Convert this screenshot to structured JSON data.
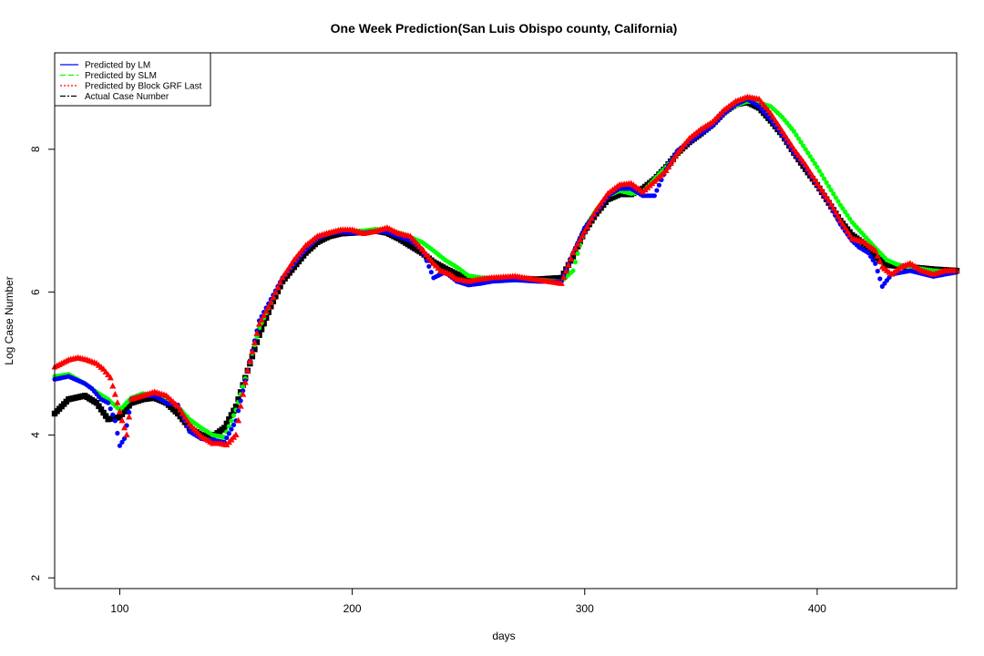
{
  "chart_data": {
    "type": "scatter",
    "title": "One Week Prediction(San Luis Obispo county, California)",
    "xlabel": "days",
    "ylabel": "Log Case Number",
    "xlim": [
      72,
      460
    ],
    "ylim": [
      1.85,
      9.35
    ],
    "xticks": [
      100,
      200,
      300,
      400
    ],
    "yticks": [
      2,
      4,
      6,
      8
    ],
    "legend_position": "top-left",
    "legend": [
      {
        "label": "Predicted by LM",
        "color": "#0000ff",
        "line": "solid"
      },
      {
        "label": "Predicted by SLM",
        "color": "#00ff00",
        "line": "dashed"
      },
      {
        "label": "Predicted by Block GRF Last",
        "color": "#ff0000",
        "line": "dotted"
      },
      {
        "label": "Actual Case Number",
        "color": "#000000",
        "line": "dashdot"
      }
    ],
    "series": [
      {
        "name": "Actual Case Number",
        "color": "#000000",
        "marker": "square",
        "points": [
          [
            72,
            4.3
          ],
          [
            78,
            4.5
          ],
          [
            85,
            4.55
          ],
          [
            90,
            4.45
          ],
          [
            95,
            4.22
          ],
          [
            100,
            4.25
          ],
          [
            105,
            4.45
          ],
          [
            110,
            4.5
          ],
          [
            115,
            4.52
          ],
          [
            120,
            4.45
          ],
          [
            125,
            4.3
          ],
          [
            130,
            4.1
          ],
          [
            135,
            4.0
          ],
          [
            140,
            3.98
          ],
          [
            145,
            4.1
          ],
          [
            150,
            4.4
          ],
          [
            155,
            4.9
          ],
          [
            160,
            5.4
          ],
          [
            165,
            5.8
          ],
          [
            170,
            6.15
          ],
          [
            175,
            6.35
          ],
          [
            180,
            6.55
          ],
          [
            185,
            6.7
          ],
          [
            190,
            6.78
          ],
          [
            195,
            6.82
          ],
          [
            200,
            6.83
          ],
          [
            205,
            6.84
          ],
          [
            210,
            6.86
          ],
          [
            215,
            6.83
          ],
          [
            220,
            6.75
          ],
          [
            225,
            6.65
          ],
          [
            230,
            6.55
          ],
          [
            235,
            6.42
          ],
          [
            240,
            6.33
          ],
          [
            245,
            6.25
          ],
          [
            250,
            6.2
          ],
          [
            260,
            6.18
          ],
          [
            270,
            6.18
          ],
          [
            280,
            6.18
          ],
          [
            290,
            6.2
          ],
          [
            295,
            6.5
          ],
          [
            300,
            6.85
          ],
          [
            305,
            7.1
          ],
          [
            310,
            7.3
          ],
          [
            315,
            7.37
          ],
          [
            320,
            7.37
          ],
          [
            325,
            7.45
          ],
          [
            330,
            7.58
          ],
          [
            335,
            7.75
          ],
          [
            340,
            7.95
          ],
          [
            345,
            8.1
          ],
          [
            350,
            8.22
          ],
          [
            355,
            8.35
          ],
          [
            360,
            8.52
          ],
          [
            365,
            8.63
          ],
          [
            370,
            8.66
          ],
          [
            375,
            8.58
          ],
          [
            380,
            8.4
          ],
          [
            385,
            8.2
          ],
          [
            390,
            7.95
          ],
          [
            395,
            7.72
          ],
          [
            400,
            7.5
          ],
          [
            405,
            7.25
          ],
          [
            410,
            7.0
          ],
          [
            415,
            6.8
          ],
          [
            420,
            6.68
          ],
          [
            425,
            6.5
          ],
          [
            430,
            6.38
          ],
          [
            440,
            6.35
          ],
          [
            450,
            6.32
          ],
          [
            460,
            6.3
          ]
        ]
      },
      {
        "name": "Predicted by SLM",
        "color": "#00ff00",
        "marker": "dot",
        "points": [
          [
            72,
            4.82
          ],
          [
            78,
            4.85
          ],
          [
            85,
            4.72
          ],
          [
            90,
            4.6
          ],
          [
            95,
            4.5
          ],
          [
            100,
            4.35
          ],
          [
            105,
            4.52
          ],
          [
            110,
            4.58
          ],
          [
            115,
            4.55
          ],
          [
            120,
            4.5
          ],
          [
            125,
            4.4
          ],
          [
            130,
            4.22
          ],
          [
            135,
            4.1
          ],
          [
            140,
            4.0
          ],
          [
            145,
            3.97
          ],
          [
            150,
            4.35
          ],
          [
            155,
            4.9
          ],
          [
            160,
            5.5
          ],
          [
            165,
            5.85
          ],
          [
            170,
            6.2
          ],
          [
            175,
            6.4
          ],
          [
            180,
            6.6
          ],
          [
            185,
            6.75
          ],
          [
            190,
            6.82
          ],
          [
            195,
            6.86
          ],
          [
            200,
            6.85
          ],
          [
            205,
            6.86
          ],
          [
            210,
            6.88
          ],
          [
            215,
            6.87
          ],
          [
            220,
            6.83
          ],
          [
            225,
            6.77
          ],
          [
            230,
            6.7
          ],
          [
            235,
            6.58
          ],
          [
            240,
            6.45
          ],
          [
            245,
            6.35
          ],
          [
            250,
            6.23
          ],
          [
            260,
            6.18
          ],
          [
            270,
            6.17
          ],
          [
            280,
            6.17
          ],
          [
            290,
            6.15
          ],
          [
            295,
            6.3
          ],
          [
            300,
            6.9
          ],
          [
            305,
            7.15
          ],
          [
            310,
            7.35
          ],
          [
            315,
            7.42
          ],
          [
            320,
            7.38
          ],
          [
            325,
            7.4
          ],
          [
            330,
            7.58
          ],
          [
            335,
            7.75
          ],
          [
            340,
            7.95
          ],
          [
            345,
            8.13
          ],
          [
            350,
            8.24
          ],
          [
            355,
            8.35
          ],
          [
            360,
            8.5
          ],
          [
            365,
            8.62
          ],
          [
            370,
            8.67
          ],
          [
            375,
            8.65
          ],
          [
            380,
            8.6
          ],
          [
            385,
            8.45
          ],
          [
            390,
            8.25
          ],
          [
            395,
            8.0
          ],
          [
            400,
            7.75
          ],
          [
            405,
            7.48
          ],
          [
            410,
            7.22
          ],
          [
            415,
            6.98
          ],
          [
            420,
            6.8
          ],
          [
            425,
            6.62
          ],
          [
            430,
            6.45
          ],
          [
            435,
            6.38
          ],
          [
            440,
            6.35
          ],
          [
            450,
            6.3
          ],
          [
            460,
            6.28
          ]
        ]
      },
      {
        "name": "Predicted by LM",
        "color": "#0000ff",
        "marker": "dot",
        "points": [
          [
            72,
            4.78
          ],
          [
            78,
            4.82
          ],
          [
            85,
            4.72
          ],
          [
            88,
            4.65
          ],
          [
            92,
            4.5
          ],
          [
            95,
            4.45
          ],
          [
            98,
            4.2
          ],
          [
            100,
            3.85
          ],
          [
            102,
            3.95
          ],
          [
            105,
            4.5
          ],
          [
            110,
            4.55
          ],
          [
            115,
            4.55
          ],
          [
            120,
            4.45
          ],
          [
            125,
            4.42
          ],
          [
            130,
            4.05
          ],
          [
            135,
            3.95
          ],
          [
            140,
            3.93
          ],
          [
            145,
            3.9
          ],
          [
            150,
            4.2
          ],
          [
            155,
            4.9
          ],
          [
            160,
            5.6
          ],
          [
            165,
            5.9
          ],
          [
            170,
            6.2
          ],
          [
            175,
            6.4
          ],
          [
            180,
            6.6
          ],
          [
            185,
            6.75
          ],
          [
            190,
            6.82
          ],
          [
            195,
            6.84
          ],
          [
            200,
            6.83
          ],
          [
            205,
            6.83
          ],
          [
            210,
            6.85
          ],
          [
            215,
            6.84
          ],
          [
            220,
            6.78
          ],
          [
            225,
            6.72
          ],
          [
            230,
            6.6
          ],
          [
            235,
            6.2
          ],
          [
            240,
            6.28
          ],
          [
            245,
            6.15
          ],
          [
            250,
            6.1
          ],
          [
            255,
            6.12
          ],
          [
            260,
            6.15
          ],
          [
            270,
            6.17
          ],
          [
            280,
            6.15
          ],
          [
            290,
            6.15
          ],
          [
            295,
            6.55
          ],
          [
            300,
            6.9
          ],
          [
            305,
            7.12
          ],
          [
            310,
            7.35
          ],
          [
            315,
            7.45
          ],
          [
            320,
            7.45
          ],
          [
            325,
            7.35
          ],
          [
            330,
            7.35
          ],
          [
            335,
            7.72
          ],
          [
            340,
            7.98
          ],
          [
            345,
            8.1
          ],
          [
            350,
            8.22
          ],
          [
            355,
            8.33
          ],
          [
            360,
            8.5
          ],
          [
            365,
            8.63
          ],
          [
            370,
            8.7
          ],
          [
            375,
            8.6
          ],
          [
            380,
            8.42
          ],
          [
            385,
            8.2
          ],
          [
            390,
            7.95
          ],
          [
            395,
            7.75
          ],
          [
            400,
            7.5
          ],
          [
            405,
            7.25
          ],
          [
            410,
            6.95
          ],
          [
            415,
            6.72
          ],
          [
            418,
            6.63
          ],
          [
            422,
            6.55
          ],
          [
            425,
            6.4
          ],
          [
            428,
            6.08
          ],
          [
            432,
            6.25
          ],
          [
            440,
            6.3
          ],
          [
            450,
            6.22
          ],
          [
            460,
            6.28
          ]
        ]
      },
      {
        "name": "Predicted by Block GRF Last",
        "color": "#ff0000",
        "marker": "triangle",
        "points": [
          [
            72,
            4.95
          ],
          [
            75,
            5.0
          ],
          [
            78,
            5.05
          ],
          [
            82,
            5.08
          ],
          [
            86,
            5.05
          ],
          [
            90,
            5.0
          ],
          [
            93,
            4.92
          ],
          [
            96,
            4.8
          ],
          [
            99,
            4.45
          ],
          [
            101,
            4.2
          ],
          [
            103,
            4.0
          ],
          [
            105,
            4.5
          ],
          [
            110,
            4.55
          ],
          [
            115,
            4.6
          ],
          [
            120,
            4.55
          ],
          [
            125,
            4.4
          ],
          [
            130,
            4.15
          ],
          [
            135,
            3.98
          ],
          [
            140,
            3.88
          ],
          [
            143,
            3.88
          ],
          [
            146,
            3.86
          ],
          [
            150,
            4.0
          ],
          [
            152,
            4.4
          ],
          [
            155,
            4.9
          ],
          [
            160,
            5.55
          ],
          [
            165,
            5.85
          ],
          [
            170,
            6.2
          ],
          [
            175,
            6.45
          ],
          [
            180,
            6.65
          ],
          [
            185,
            6.78
          ],
          [
            190,
            6.83
          ],
          [
            195,
            6.87
          ],
          [
            200,
            6.87
          ],
          [
            205,
            6.82
          ],
          [
            210,
            6.85
          ],
          [
            215,
            6.9
          ],
          [
            220,
            6.82
          ],
          [
            225,
            6.78
          ],
          [
            230,
            6.6
          ],
          [
            235,
            6.4
          ],
          [
            238,
            6.3
          ],
          [
            242,
            6.25
          ],
          [
            245,
            6.18
          ],
          [
            250,
            6.15
          ],
          [
            255,
            6.18
          ],
          [
            260,
            6.2
          ],
          [
            270,
            6.22
          ],
          [
            280,
            6.17
          ],
          [
            290,
            6.12
          ],
          [
            295,
            6.55
          ],
          [
            300,
            6.85
          ],
          [
            305,
            7.15
          ],
          [
            310,
            7.38
          ],
          [
            315,
            7.5
          ],
          [
            320,
            7.52
          ],
          [
            325,
            7.4
          ],
          [
            330,
            7.55
          ],
          [
            335,
            7.7
          ],
          [
            340,
            7.95
          ],
          [
            345,
            8.15
          ],
          [
            350,
            8.28
          ],
          [
            355,
            8.38
          ],
          [
            360,
            8.55
          ],
          [
            365,
            8.67
          ],
          [
            370,
            8.73
          ],
          [
            375,
            8.7
          ],
          [
            380,
            8.5
          ],
          [
            385,
            8.25
          ],
          [
            390,
            8.0
          ],
          [
            395,
            7.78
          ],
          [
            400,
            7.52
          ],
          [
            405,
            7.28
          ],
          [
            410,
            7.0
          ],
          [
            415,
            6.75
          ],
          [
            420,
            6.7
          ],
          [
            425,
            6.58
          ],
          [
            428,
            6.35
          ],
          [
            432,
            6.25
          ],
          [
            436,
            6.35
          ],
          [
            440,
            6.4
          ],
          [
            445,
            6.3
          ],
          [
            450,
            6.25
          ],
          [
            455,
            6.3
          ],
          [
            460,
            6.3
          ]
        ]
      }
    ]
  }
}
